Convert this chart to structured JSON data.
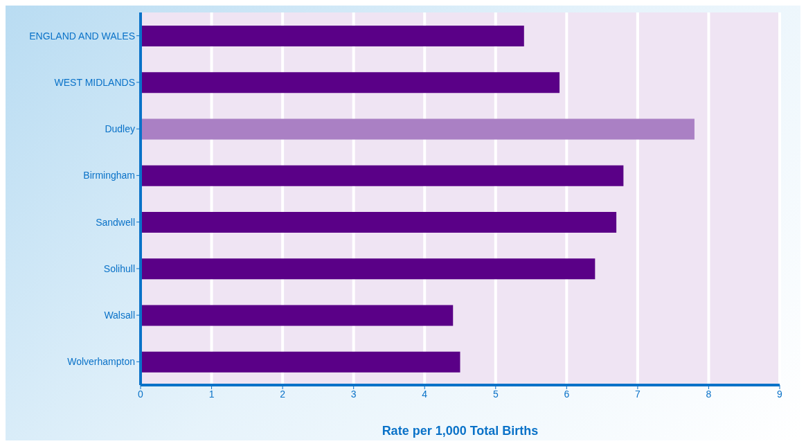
{
  "chart_data": {
    "type": "bar",
    "orientation": "horizontal",
    "xlabel": "Rate per 1,000 Total Births",
    "categories": [
      "ENGLAND AND WALES",
      "WEST MIDLANDS",
      "Dudley",
      "Birmingham",
      "Sandwell",
      "Solihull",
      "Walsall",
      "Wolverhampton"
    ],
    "values": [
      5.4,
      5.9,
      7.8,
      6.8,
      6.7,
      6.4,
      4.4,
      4.5
    ],
    "colors": [
      "#5a0087",
      "#5a0087",
      "#aa80c4",
      "#5a0087",
      "#5a0087",
      "#5a0087",
      "#5a0087",
      "#5a0087"
    ],
    "xlim": [
      0,
      9
    ],
    "xticks": [
      0,
      1,
      2,
      3,
      4,
      5,
      6,
      7,
      8,
      9
    ],
    "grid": "x"
  }
}
